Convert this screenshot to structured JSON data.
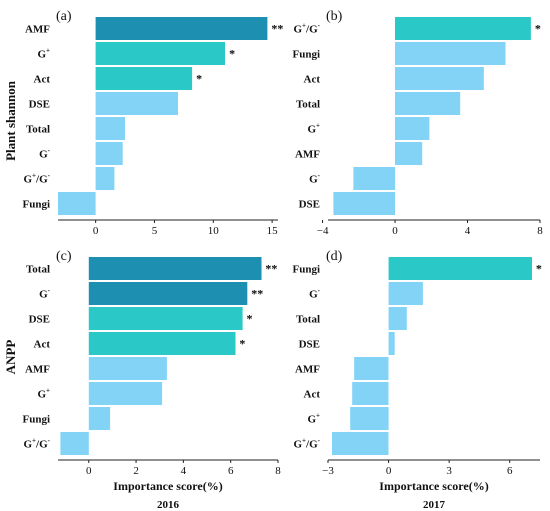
{
  "figure": {
    "row_labels": [
      "Plant shannon",
      "ANPP"
    ],
    "xlabel": "Importance score(%)",
    "years": [
      "2016",
      "2017"
    ]
  },
  "colors": {
    "highly_significant": "#1d8fb1",
    "significant": "#2bc8c8",
    "not_significant": "#82d3f5",
    "axis": "#222222"
  },
  "chart_data": [
    {
      "type": "bar",
      "orientation": "horizontal",
      "panel": "(a)",
      "categories": [
        "AMF",
        "G+",
        "Act",
        "DSE",
        "Total",
        "G-",
        "G+/G-",
        "Fungi"
      ],
      "values": [
        14.6,
        11.0,
        8.2,
        7.0,
        2.5,
        2.3,
        1.6,
        -3.2
      ],
      "significance": [
        "**",
        "*",
        "*",
        "",
        "",
        "",
        "",
        ""
      ],
      "xlim": [
        -3.2,
        15.5
      ],
      "xticks": [
        0,
        5,
        10,
        15
      ]
    },
    {
      "type": "bar",
      "orientation": "horizontal",
      "panel": "(b)",
      "categories": [
        "G+/G-",
        "Fungi",
        "Act",
        "Total",
        "G+",
        "AMF",
        "G-",
        "DSE"
      ],
      "values": [
        7.5,
        6.1,
        4.9,
        3.6,
        1.9,
        1.5,
        -2.3,
        -3.4
      ],
      "significance": [
        "*",
        "",
        "",
        "",
        "",
        "",
        "",
        ""
      ],
      "xlim": [
        -3.7,
        8.0
      ],
      "xticks": [
        -4,
        0,
        4,
        8
      ]
    },
    {
      "type": "bar",
      "orientation": "horizontal",
      "panel": "(c)",
      "categories": [
        "Total",
        "G-",
        "DSE",
        "Act",
        "AMF",
        "G+",
        "Fungi",
        "G+/G-"
      ],
      "values": [
        7.3,
        6.7,
        6.5,
        6.2,
        3.3,
        3.1,
        0.9,
        -1.2
      ],
      "significance": [
        "**",
        "**",
        "*",
        "*",
        "",
        "",
        "",
        ""
      ],
      "xlim": [
        -1.3,
        8.0
      ],
      "xticks": [
        0,
        2,
        4,
        6,
        8
      ],
      "year": "2016"
    },
    {
      "type": "bar",
      "orientation": "horizontal",
      "panel": "(d)",
      "categories": [
        "Fungi",
        "G-",
        "Total",
        "DSE",
        "AMF",
        "Act",
        "G+",
        "G+/G-"
      ],
      "values": [
        7.1,
        1.7,
        0.9,
        0.3,
        -1.7,
        -1.8,
        -1.9,
        -2.8
      ],
      "significance": [
        "*",
        "",
        "",
        "",
        "",
        "",
        "",
        ""
      ],
      "xlim": [
        -3.0,
        7.5
      ],
      "xticks": [
        -3,
        0,
        3,
        6
      ],
      "year": "2017"
    }
  ]
}
